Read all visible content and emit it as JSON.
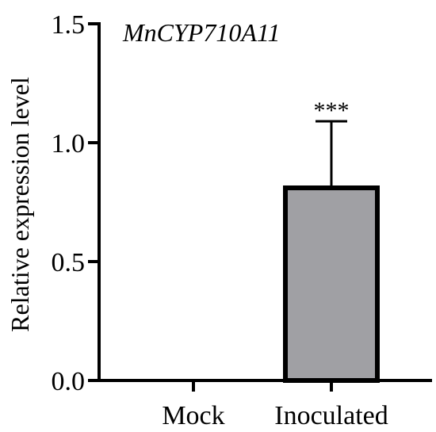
{
  "chart_data": {
    "type": "bar",
    "title": "MnCYP710A11",
    "xlabel": "",
    "ylabel": "Relative expression level",
    "categories": [
      "Mock",
      "Inoculated"
    ],
    "values": [
      0.0,
      0.82
    ],
    "error": [
      0.0,
      0.27
    ],
    "annotations": [
      "",
      "***"
    ],
    "ylim": [
      0,
      1.5
    ],
    "yticks": [
      0.0,
      0.5,
      1.0,
      1.5
    ],
    "ytick_labels": [
      "0.0",
      "0.5",
      "1.0",
      "1.5"
    ],
    "grid": false,
    "bar_fill": "#a0a0a4",
    "bar_stroke": "#000000"
  }
}
